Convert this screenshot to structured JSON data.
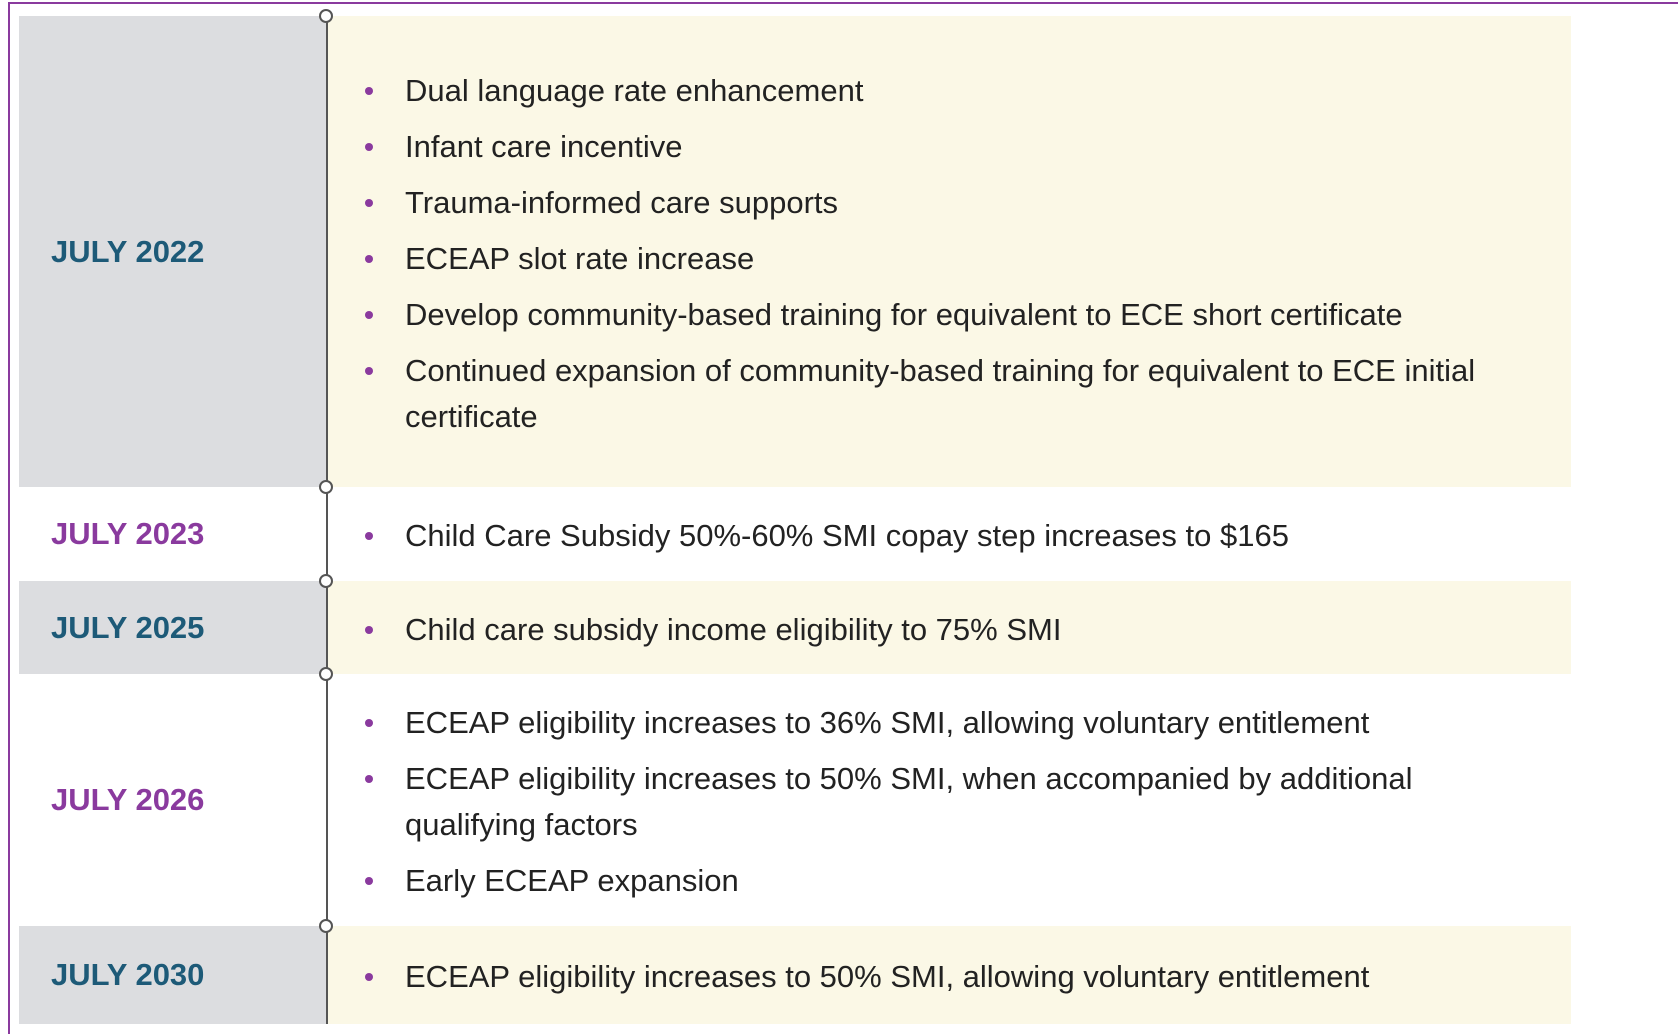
{
  "rows": [
    {
      "date": "JULY 2022",
      "items": [
        "Dual language rate enhancement",
        "Infant care incentive",
        "Trauma-informed care supports",
        "ECEAP slot rate increase",
        "Develop community-based training for equivalent to ECE short certificate",
        "Continued expansion of community-based training for equivalent to ECE initial certificate"
      ]
    },
    {
      "date": "JULY 2023",
      "items": [
        "Child Care Subsidy 50%-60% SMI copay step increases to $165"
      ]
    },
    {
      "date": "JULY 2025",
      "items": [
        "Child care subsidy income eligibility to 75% SMI"
      ]
    },
    {
      "date": "JULY 2026",
      "items": [
        "ECEAP eligibility increases to 36% SMI, allowing voluntary entitlement",
        "ECEAP eligibility increases to 50% SMI, when accompanied by additional qualifying factors",
        "Early ECEAP expansion"
      ]
    },
    {
      "date": "JULY 2030",
      "items": [
        "ECEAP eligibility increases to 50% SMI, allowing voluntary entitlement"
      ]
    }
  ]
}
